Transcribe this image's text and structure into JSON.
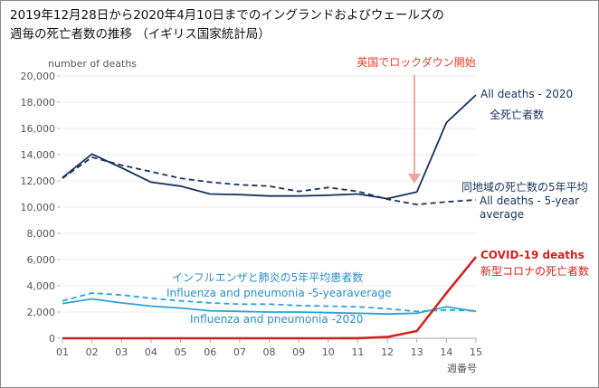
{
  "title": {
    "line1": "2019年12月28日から2020年4月10日までのイングランドおよびウェールズの",
    "line2": "週毎の死亡者数の推移 （イギリス国家統計局）"
  },
  "chart_data": {
    "type": "line",
    "title": "2019年12月28日から2020年4月10日までのイングランドおよびウェールズの週毎の死亡者数の推移 （イギリス国家統計局）",
    "xlabel": "週番号",
    "ylabel": "number of deaths",
    "x": [
      "01",
      "02",
      "03",
      "04",
      "05",
      "06",
      "07",
      "08",
      "09",
      "10",
      "11",
      "12",
      "13",
      "14",
      "15"
    ],
    "ylim": [
      0,
      20000
    ],
    "yticks": [
      0,
      2000,
      4000,
      6000,
      8000,
      10000,
      12000,
      14000,
      16000,
      18000,
      20000
    ],
    "ytick_labels": [
      "0",
      "2,000",
      "4,000",
      "6,000",
      "8,000",
      "10,000",
      "12,000",
      "14,000",
      "16,000",
      "18,000",
      "20,000"
    ],
    "grid": true,
    "legend": "inline-labels",
    "series": [
      {
        "name": "All deaths - 2020",
        "label_ja": "全死亡者数",
        "style": "solid",
        "color": "#17325c",
        "values": [
          12250,
          14050,
          13000,
          11900,
          11600,
          11000,
          10950,
          10850,
          10850,
          10900,
          11000,
          10650,
          11150,
          16450,
          18550
        ]
      },
      {
        "name": "All deaths - 5-year average",
        "label_ja": "同地域の死亡数の5年平均",
        "label_lines": [
          "All deaths - 5-year",
          "average"
        ],
        "style": "dashed",
        "color": "#17325c",
        "values": [
          12200,
          13800,
          13200,
          12700,
          12200,
          11900,
          11700,
          11600,
          11200,
          11500,
          11200,
          10600,
          10200,
          10400,
          10550
        ]
      },
      {
        "name": "Influenza and pneumonia -5-yearaverage",
        "label_ja": "インフルエンザと肺炎の5年平均患者数",
        "style": "dashed",
        "color": "#2aa3d8",
        "values": [
          2850,
          3450,
          3300,
          3050,
          2850,
          2700,
          2600,
          2600,
          2500,
          2450,
          2400,
          2250,
          2050,
          2150,
          2100
        ]
      },
      {
        "name": "Influenza and pneumonia -2020",
        "style": "solid",
        "color": "#2aa3d8",
        "values": [
          2650,
          3000,
          2700,
          2450,
          2300,
          2100,
          2050,
          2000,
          2000,
          1950,
          1900,
          1850,
          1900,
          2400,
          2050
        ]
      },
      {
        "name": "COVID-19 deaths",
        "label_ja": "新型コロナの死亡者数",
        "style": "solid",
        "color": "#d62020",
        "values": [
          0,
          0,
          0,
          0,
          0,
          0,
          0,
          0,
          0,
          0,
          5,
          100,
          550,
          3450,
          6200
        ]
      }
    ],
    "annotations": [
      {
        "text": "英国でロックダウン開始",
        "x": "13",
        "type": "arrow",
        "color": "#e8402a",
        "arrow_color": "#f4a5a0"
      }
    ]
  }
}
